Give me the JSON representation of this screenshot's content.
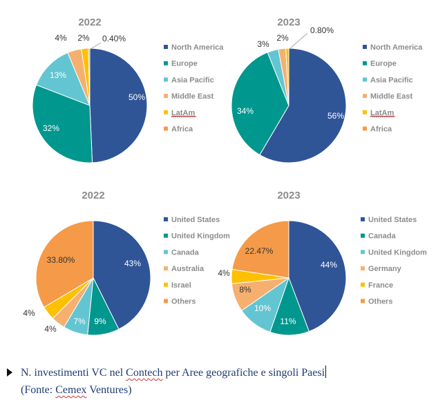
{
  "colors": {
    "title": "#8c8c8c",
    "caption": "#1f3b73"
  },
  "chart_data": [
    {
      "type": "pie",
      "title": "2022",
      "categories": [
        "North America",
        "Europe",
        "Asia Pacific",
        "Middle East",
        "LatAm",
        "Africa"
      ],
      "values": [
        50,
        32,
        13,
        4,
        2,
        0.4
      ],
      "labels": [
        "50%",
        "32%",
        "13%",
        "4%",
        "2%",
        "0.40%"
      ],
      "colors": [
        "#2f5597",
        "#00978f",
        "#63c5d1",
        "#f5b070",
        "#ffc000",
        "#f59a48"
      ],
      "legend": "right"
    },
    {
      "type": "pie",
      "title": "2023",
      "categories": [
        "North America",
        "Europe",
        "Asia Pacific",
        "Middle East",
        "LatAm",
        "Africa"
      ],
      "values": [
        56,
        34,
        3,
        2,
        0.8,
        0
      ],
      "labels": [
        "56%",
        "34%",
        "3%",
        "2%",
        "0.80%",
        ""
      ],
      "colors": [
        "#2f5597",
        "#00978f",
        "#63c5d1",
        "#f5b070",
        "#ffc000",
        "#f59a48"
      ],
      "legend": "right"
    },
    {
      "type": "pie",
      "title": "2022",
      "categories": [
        "United States",
        "United Kingdom",
        "Canada",
        "Australia",
        "Israel",
        "Others"
      ],
      "values": [
        43,
        9,
        7,
        4,
        4,
        33.8
      ],
      "labels": [
        "43%",
        "9%",
        "7%",
        "4%",
        "4%",
        "33.80%"
      ],
      "colors": [
        "#2f5597",
        "#00978f",
        "#63c5d1",
        "#f5b070",
        "#ffc000",
        "#f59a48"
      ],
      "legend": "right"
    },
    {
      "type": "pie",
      "title": "2023",
      "categories": [
        "United States",
        "Canada",
        "United Kingdom",
        "Germany",
        "France",
        "Others"
      ],
      "values": [
        44,
        11,
        10,
        8,
        4,
        22.47
      ],
      "labels": [
        "44%",
        "11%",
        "10%",
        "8%",
        "4%",
        "22.47%"
      ],
      "colors": [
        "#2f5597",
        "#00978f",
        "#63c5d1",
        "#f5b070",
        "#ffc000",
        "#f59a48"
      ],
      "legend": "right"
    }
  ],
  "caption": {
    "line1_prefix": "N. investimenti VC nel ",
    "line1_underlined": "Contech",
    "line1_suffix": " per Aree geografiche e singoli Paesi",
    "line2_open": "(Fonte: ",
    "line2_underlined": "Cemex",
    "line2_close": " Ventures)"
  }
}
